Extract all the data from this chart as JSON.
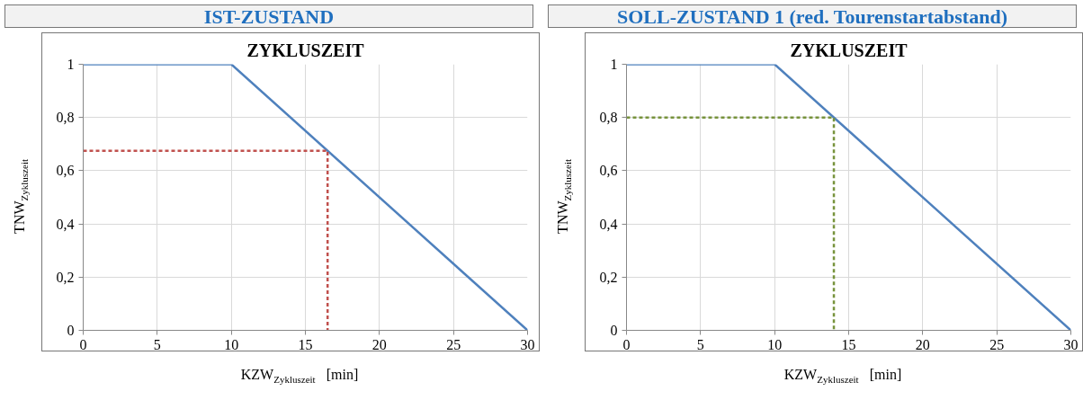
{
  "chart_data": [
    {
      "type": "line",
      "title": "IST-ZUSTAND",
      "subtitle": "ZYKLUSZEIT",
      "xlabel": "KZW$_{Zykluszeit}$ [min]",
      "ylabel": "TNW$_{Zykluszeit}$",
      "xlim": [
        0,
        30
      ],
      "ylim": [
        0,
        1
      ],
      "xticks": [
        0,
        5,
        10,
        15,
        20,
        25,
        30
      ],
      "yticks": [
        0,
        {
          "value": 0.2,
          "label": "0,2"
        },
        {
          "value": 0.4,
          "label": "0,4"
        },
        {
          "value": 0.6,
          "label": "0,6"
        },
        {
          "value": 0.8,
          "label": "0,8"
        },
        1
      ],
      "grid": true,
      "series": [
        {
          "x": [
            0,
            10,
            30
          ],
          "values": [
            1,
            1,
            0
          ],
          "color": "#4f81bd",
          "line_style": "solid"
        },
        {
          "x": [
            0,
            16.5,
            16.5
          ],
          "values": [
            0.675,
            0.675,
            0
          ],
          "color": "#c0504d",
          "line_style": "dashed"
        }
      ]
    },
    {
      "type": "line",
      "title": "SOLL-ZUSTAND 1 (red. Tourenstartabstand)",
      "subtitle": "ZYKLUSZEIT",
      "xlabel": "KZW$_{Zykluszeit}$ [min]",
      "ylabel": "TNW$_{Zykluszeit}$",
      "xlim": [
        0,
        30
      ],
      "ylim": [
        0,
        1
      ],
      "xticks": [
        0,
        5,
        10,
        15,
        20,
        25,
        30
      ],
      "yticks": [
        0,
        {
          "value": 0.2,
          "label": "0,2"
        },
        {
          "value": 0.4,
          "label": "0,4"
        },
        {
          "value": 0.6,
          "label": "0,6"
        },
        {
          "value": 0.8,
          "label": "0,8"
        },
        1
      ],
      "grid": true,
      "series": [
        {
          "x": [
            0,
            10,
            30
          ],
          "values": [
            1,
            1,
            0
          ],
          "color": "#4f81bd",
          "line_style": "solid"
        },
        {
          "x": [
            0,
            14,
            14
          ],
          "values": [
            0.8,
            0.8,
            0
          ],
          "color": "#77933c",
          "line_style": "dashed"
        }
      ]
    }
  ]
}
